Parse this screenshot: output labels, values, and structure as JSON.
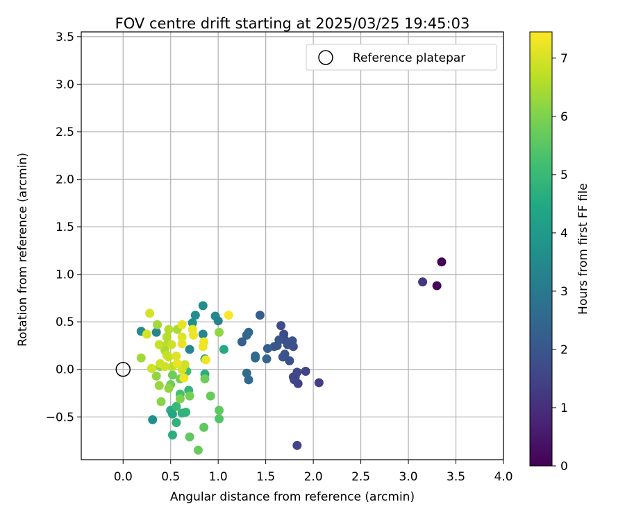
{
  "chart_data": {
    "type": "scatter",
    "title": "FOV centre drift starting at 2025/03/25 19:45:03",
    "xlabel": "Angular distance from reference (arcmin)",
    "ylabel": "Rotation from reference (arcmin)",
    "xlim": [
      -0.44,
      4.0
    ],
    "ylim": [
      -0.95,
      3.55
    ],
    "xticks": [
      "0.0",
      "0.5",
      "1.0",
      "1.5",
      "2.0",
      "2.5",
      "3.0",
      "3.5",
      "4.0"
    ],
    "yticks": [
      "−0.5",
      "0.0",
      "0.5",
      "1.0",
      "1.5",
      "2.0",
      "2.5",
      "3.0",
      "3.5"
    ],
    "grid": true,
    "legend": {
      "placement": "top-right",
      "entries": [
        "Reference platepar"
      ]
    },
    "reference_point": {
      "x": 0.0,
      "y": 0.0
    },
    "colorbar": {
      "label": "Hours from first FF file",
      "range": [
        0,
        7.45
      ],
      "ticks": [
        "0",
        "1",
        "2",
        "3",
        "4",
        "5",
        "6",
        "7"
      ],
      "colormap": "viridis"
    },
    "points": [
      {
        "x": 3.35,
        "y": 1.13,
        "h": 0.05
      },
      {
        "x": 3.3,
        "y": 0.88,
        "h": 0.15
      },
      {
        "x": 3.15,
        "y": 0.92,
        "h": 1.2
      },
      {
        "x": 1.83,
        "y": -0.8,
        "h": 1.5
      },
      {
        "x": 2.06,
        "y": -0.14,
        "h": 1.4
      },
      {
        "x": 1.92,
        "y": -0.02,
        "h": 1.5
      },
      {
        "x": 1.84,
        "y": -0.15,
        "h": 1.5
      },
      {
        "x": 1.81,
        "y": -0.08,
        "h": 1.6
      },
      {
        "x": 1.83,
        "y": -0.03,
        "h": 1.6
      },
      {
        "x": 1.79,
        "y": -0.08,
        "h": 1.6
      },
      {
        "x": 1.8,
        "y": -0.11,
        "h": 1.55
      },
      {
        "x": 1.66,
        "y": 0.46,
        "h": 1.7
      },
      {
        "x": 1.69,
        "y": 0.37,
        "h": 1.75
      },
      {
        "x": 1.7,
        "y": 0.31,
        "h": 1.8
      },
      {
        "x": 1.73,
        "y": 0.26,
        "h": 1.9
      },
      {
        "x": 1.78,
        "y": 0.3,
        "h": 1.9
      },
      {
        "x": 1.79,
        "y": 0.24,
        "h": 1.85
      },
      {
        "x": 1.7,
        "y": 0.16,
        "h": 1.9
      },
      {
        "x": 1.68,
        "y": 0.13,
        "h": 1.95
      },
      {
        "x": 1.75,
        "y": 0.09,
        "h": 1.8
      },
      {
        "x": 1.64,
        "y": 0.31,
        "h": 1.9
      },
      {
        "x": 1.62,
        "y": 0.25,
        "h": 2.0
      },
      {
        "x": 1.59,
        "y": 0.24,
        "h": 2.0
      },
      {
        "x": 1.52,
        "y": 0.22,
        "h": 2.2
      },
      {
        "x": 1.51,
        "y": 0.11,
        "h": 2.4
      },
      {
        "x": 1.44,
        "y": 0.57,
        "h": 2.2
      },
      {
        "x": 1.39,
        "y": 0.14,
        "h": 2.5
      },
      {
        "x": 1.39,
        "y": 0.12,
        "h": 2.6
      },
      {
        "x": 1.32,
        "y": 0.39,
        "h": 2.5
      },
      {
        "x": 1.3,
        "y": 0.36,
        "h": 2.5
      },
      {
        "x": 1.25,
        "y": 0.29,
        "h": 2.3
      },
      {
        "x": 1.32,
        "y": -0.11,
        "h": 2.5
      },
      {
        "x": 1.3,
        "y": -0.04,
        "h": 2.6
      },
      {
        "x": 0.84,
        "y": 0.67,
        "h": 3.6
      },
      {
        "x": 0.76,
        "y": 0.57,
        "h": 3.6
      },
      {
        "x": 0.97,
        "y": 0.56,
        "h": 3.5
      },
      {
        "x": 1.0,
        "y": 0.51,
        "h": 3.3
      },
      {
        "x": 0.73,
        "y": 0.49,
        "h": 3.7
      },
      {
        "x": 0.84,
        "y": 0.37,
        "h": 3.4
      },
      {
        "x": 0.7,
        "y": 0.21,
        "h": 3.4
      },
      {
        "x": 0.86,
        "y": 0.11,
        "h": 4.2
      },
      {
        "x": 0.19,
        "y": 0.4,
        "h": 3.6
      },
      {
        "x": 0.35,
        "y": 0.39,
        "h": 3.4
      },
      {
        "x": 0.31,
        "y": -0.53,
        "h": 3.7
      },
      {
        "x": 0.5,
        "y": -0.43,
        "h": 4.6
      },
      {
        "x": 0.52,
        "y": -0.47,
        "h": 4.4
      },
      {
        "x": 1.06,
        "y": 0.21,
        "h": 4.5
      },
      {
        "x": 0.86,
        "y": -0.05,
        "h": 4.6
      },
      {
        "x": 0.66,
        "y": -0.45,
        "h": 4.9
      },
      {
        "x": 0.62,
        "y": -0.46,
        "h": 4.8
      },
      {
        "x": 0.52,
        "y": -0.69,
        "h": 4.7
      },
      {
        "x": 0.56,
        "y": -0.56,
        "h": 4.8
      },
      {
        "x": 0.56,
        "y": -0.39,
        "h": 5.0
      },
      {
        "x": 0.67,
        "y": -0.02,
        "h": 5.1
      },
      {
        "x": 0.69,
        "y": -0.22,
        "h": 4.9
      },
      {
        "x": 0.6,
        "y": -0.26,
        "h": 5.2
      },
      {
        "x": 0.7,
        "y": -0.71,
        "h": 5.6
      },
      {
        "x": 0.79,
        "y": -0.85,
        "h": 5.7
      },
      {
        "x": 0.85,
        "y": -0.61,
        "h": 5.6
      },
      {
        "x": 1.01,
        "y": -0.43,
        "h": 5.6
      },
      {
        "x": 1.01,
        "y": -0.52,
        "h": 5.4
      },
      {
        "x": 0.92,
        "y": -0.28,
        "h": 5.7
      },
      {
        "x": 0.86,
        "y": -0.1,
        "h": 5.8
      },
      {
        "x": 0.7,
        "y": -0.28,
        "h": 5.9
      },
      {
        "x": 0.6,
        "y": -0.31,
        "h": 6.0
      },
      {
        "x": 0.6,
        "y": -0.1,
        "h": 5.9
      },
      {
        "x": 0.52,
        "y": -0.06,
        "h": 5.8
      },
      {
        "x": 0.5,
        "y": -0.16,
        "h": 5.8
      },
      {
        "x": 0.4,
        "y": -0.34,
        "h": 6.1
      },
      {
        "x": 0.48,
        "y": -0.2,
        "h": 6.2
      },
      {
        "x": 0.38,
        "y": -0.17,
        "h": 6.3
      },
      {
        "x": 0.35,
        "y": -0.07,
        "h": 6.2
      },
      {
        "x": 0.39,
        "y": 0.03,
        "h": 6.2
      },
      {
        "x": 0.19,
        "y": 0.12,
        "h": 6.4
      },
      {
        "x": 0.36,
        "y": 0.47,
        "h": 6.4
      },
      {
        "x": 1.01,
        "y": 0.39,
        "h": 6.2
      },
      {
        "x": 0.57,
        "y": 0.42,
        "h": 6.5
      },
      {
        "x": 0.48,
        "y": 0.42,
        "h": 6.6
      },
      {
        "x": 0.46,
        "y": 0.34,
        "h": 6.6
      },
      {
        "x": 0.46,
        "y": 0.26,
        "h": 6.6
      },
      {
        "x": 0.44,
        "y": 0.2,
        "h": 6.5
      },
      {
        "x": 0.46,
        "y": 0.15,
        "h": 6.8
      },
      {
        "x": 0.38,
        "y": 0.26,
        "h": 6.8
      },
      {
        "x": 0.51,
        "y": 0.26,
        "h": 6.9
      },
      {
        "x": 0.48,
        "y": 0.13,
        "h": 6.8
      },
      {
        "x": 0.52,
        "y": 0.03,
        "h": 6.7
      },
      {
        "x": 0.44,
        "y": 0.03,
        "h": 6.9
      },
      {
        "x": 0.39,
        "y": 0.06,
        "h": 6.9
      },
      {
        "x": 0.3,
        "y": 0.01,
        "h": 6.9
      },
      {
        "x": 0.62,
        "y": 0.0,
        "h": 7.0
      },
      {
        "x": 0.65,
        "y": 0.05,
        "h": 6.9
      },
      {
        "x": 0.57,
        "y": 0.06,
        "h": 7.2
      },
      {
        "x": 0.64,
        "y": -0.09,
        "h": 7.3
      },
      {
        "x": 0.28,
        "y": 0.59,
        "h": 7.0
      },
      {
        "x": 0.62,
        "y": 0.47,
        "h": 7.2
      },
      {
        "x": 0.62,
        "y": 0.34,
        "h": 7.1
      },
      {
        "x": 0.73,
        "y": 0.42,
        "h": 7.2
      },
      {
        "x": 0.74,
        "y": 0.36,
        "h": 7.3
      },
      {
        "x": 0.85,
        "y": 0.29,
        "h": 7.3
      },
      {
        "x": 0.84,
        "y": 0.24,
        "h": 7.3
      },
      {
        "x": 0.62,
        "y": 0.27,
        "h": 7.2
      },
      {
        "x": 0.87,
        "y": 0.1,
        "h": 7.3
      },
      {
        "x": 1.11,
        "y": 0.57,
        "h": 7.4
      },
      {
        "x": 0.25,
        "y": 0.37,
        "h": 7.0
      },
      {
        "x": 0.56,
        "y": 0.14,
        "h": 7.1
      }
    ]
  }
}
